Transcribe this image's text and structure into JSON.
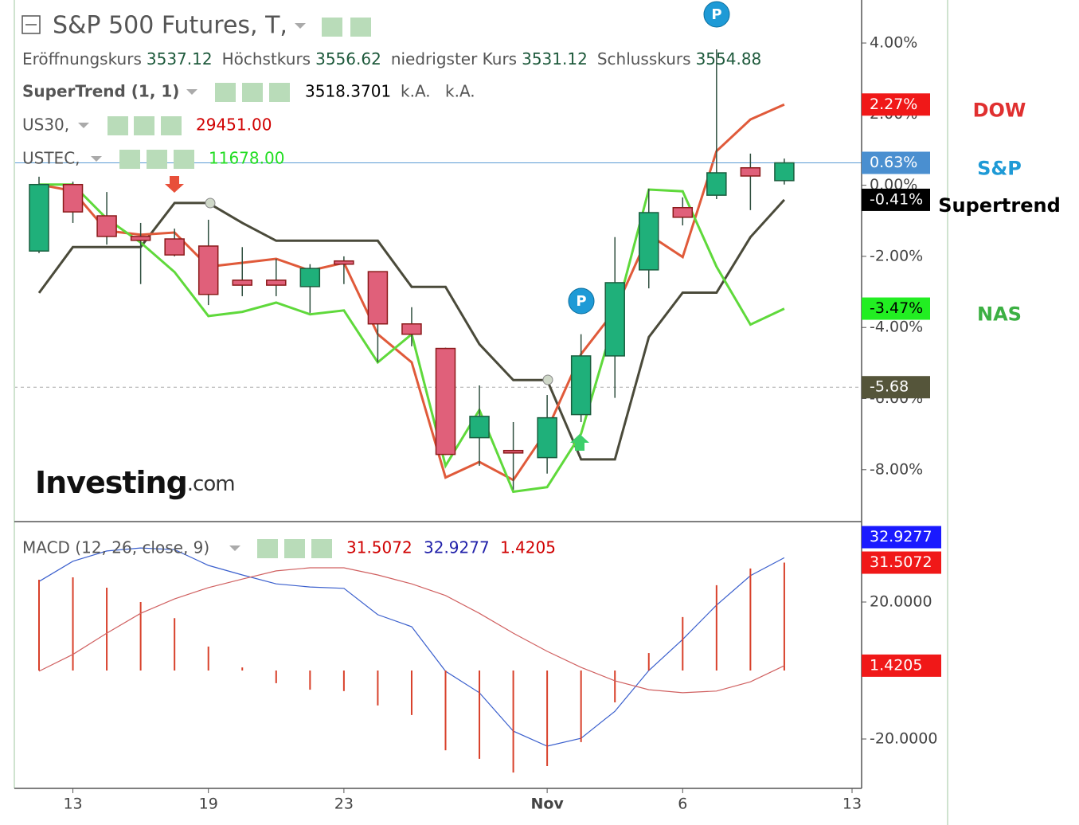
{
  "chart_data": [
    {
      "type": "candlestick",
      "title": "S&P 500 Futures, T,",
      "info": [
        {
          "label": "Eröffnungskurs",
          "value": "3537.12"
        },
        {
          "label": "Höchstkurs",
          "value": "3556.62"
        },
        {
          "label": "niedrigster Kurs",
          "value": "3531.12"
        },
        {
          "label": "Schlusskurs",
          "value": "3554.88"
        }
      ],
      "indicators": [
        {
          "label": "SuperTrend (1, 1)",
          "values": [
            "3518.3701",
            "k.A.",
            "k.A."
          ]
        },
        {
          "label": "US30,",
          "values": [
            "29451.00"
          ]
        },
        {
          "label": "USTEC,",
          "values": [
            "11678.00"
          ]
        }
      ],
      "watermark": [
        "Investing",
        ".com"
      ],
      "markers": [
        "P",
        "P"
      ],
      "categories": [
        null,
        "13",
        null,
        null,
        null,
        "19",
        null,
        null,
        null,
        "23",
        null,
        null,
        null,
        null,
        null,
        "Nov",
        null,
        null,
        null,
        "6",
        null,
        null,
        null,
        null,
        "13"
      ],
      "ylim": [
        -9.46,
        5.21
      ],
      "yticks": [
        {
          "value": 4,
          "label": "4.00%"
        },
        {
          "value": 2,
          "label": "2.00%"
        },
        {
          "value": 0,
          "label": "0.00%"
        },
        {
          "value": -2,
          "label": "-2.00%"
        },
        {
          "value": -4,
          "label": "-4.00%"
        },
        {
          "value": -6,
          "label": "-6.00%"
        },
        {
          "value": -8,
          "label": "-8.00%"
        }
      ],
      "reference_line": {
        "value": -5.68,
        "label": "-5.68",
        "color": "#55553a"
      },
      "series": [
        {
          "name": "S&P",
          "type": "candlestick",
          "color": "#5b9bd5",
          "label_color": "#1e9ad6",
          "badge_color": "#4a8fd0",
          "up_color": "#1fb07a",
          "down_color": "#e0607a",
          "open": [
            -1.85,
            0.02,
            -0.86,
            -1.44,
            -1.51,
            -1.71,
            -2.67,
            -2.67,
            -2.85,
            -2.13,
            -2.43,
            -3.9,
            -4.59,
            -7.1,
            -7.46,
            -7.66,
            -6.45,
            -4.8,
            -2.38,
            -0.63,
            -0.28,
            0.49,
            0.13,
            null,
            null
          ],
          "high": [
            0.24,
            0.1,
            -0.19,
            -1.06,
            -1.22,
            -0.97,
            -1.74,
            -2.07,
            -2.22,
            -2.0,
            -2.43,
            -3.43,
            -4.57,
            -5.63,
            -6.66,
            -5.9,
            -4.19,
            -1.46,
            -0.1,
            -0.34,
            3.82,
            0.89,
            0.75,
            null,
            null
          ],
          "low": [
            -1.91,
            -1.06,
            -1.67,
            -2.78,
            -2.0,
            -3.37,
            -3.12,
            -3.12,
            -3.59,
            -2.78,
            -4.98,
            -4.53,
            -7.59,
            -7.89,
            -8.56,
            -8.11,
            -6.66,
            -5.98,
            -2.9,
            -1.13,
            -0.39,
            -0.7,
            0.02,
            null,
            null
          ],
          "close": [
            0.02,
            -0.75,
            -1.44,
            -1.55,
            -1.96,
            -3.07,
            -2.81,
            -2.81,
            -2.34,
            -2.22,
            -3.9,
            -4.19,
            -7.57,
            -6.5,
            -7.53,
            -6.54,
            -4.8,
            -2.74,
            -0.77,
            -0.9,
            0.35,
            0.26,
            0.63,
            null,
            null
          ],
          "value_labels": [
            null,
            null,
            null,
            null,
            null,
            null,
            null,
            null,
            null,
            null,
            null,
            null,
            null,
            null,
            null,
            null,
            null,
            null,
            null,
            null,
            null,
            null,
            "0.63%",
            null,
            null
          ]
        },
        {
          "name": "DOW",
          "type": "line",
          "color": "#e05a3a",
          "label_color": "#e03030",
          "badge_color": "#f01818",
          "values": [
            0.02,
            -0.16,
            -1.28,
            -1.39,
            -1.33,
            -2.29,
            -2.18,
            -2.07,
            -2.4,
            -2.18,
            -4.19,
            -4.98,
            -8.22,
            -7.78,
            -8.29,
            -6.88,
            -4.75,
            -3.52,
            -1.39,
            -2.02,
            0.96,
            1.85,
            2.27,
            null,
            null
          ],
          "value_labels": [
            null,
            null,
            null,
            null,
            null,
            null,
            null,
            null,
            null,
            null,
            null,
            null,
            null,
            null,
            null,
            null,
            null,
            null,
            null,
            null,
            null,
            null,
            "2.27%",
            null,
            null
          ]
        },
        {
          "name": "Supertrend",
          "type": "line",
          "color": "#4a4a3a",
          "label_color": "#000000",
          "badge_color": "#000000",
          "values": [
            -3.03,
            -1.74,
            -1.74,
            -1.74,
            -0.5,
            -0.5,
            -1.06,
            -1.56,
            -1.56,
            -1.56,
            -1.56,
            -2.86,
            -2.86,
            -4.47,
            -5.48,
            -5.48,
            -7.71,
            -7.71,
            -4.27,
            -3.02,
            -3.02,
            -1.46,
            -0.41,
            null,
            null
          ],
          "value_labels": [
            null,
            null,
            null,
            null,
            null,
            null,
            null,
            null,
            null,
            null,
            null,
            null,
            null,
            null,
            null,
            null,
            null,
            null,
            null,
            null,
            null,
            null,
            "-0.41%",
            null,
            null
          ]
        },
        {
          "name": "NAS",
          "type": "line",
          "color": "#5fd93b",
          "label_color": "#3cb043",
          "badge_color": "#22ee22",
          "values": [
            0.02,
            0.02,
            -0.94,
            -1.61,
            -2.44,
            -3.68,
            -3.56,
            -3.3,
            -3.63,
            -3.52,
            -4.98,
            -4.19,
            -7.89,
            -6.32,
            -8.62,
            -8.49,
            -6.99,
            -3.74,
            -0.12,
            -0.17,
            -2.29,
            -3.92,
            -3.47,
            null,
            null
          ],
          "value_labels": [
            null,
            null,
            null,
            null,
            null,
            null,
            null,
            null,
            null,
            null,
            null,
            null,
            null,
            null,
            null,
            null,
            null,
            null,
            null,
            null,
            null,
            null,
            "-3.47%",
            null,
            null
          ]
        }
      ]
    },
    {
      "type": "macd",
      "title": "MACD (12, 26, close, 9)",
      "ylim": [
        -34.42,
        43.49
      ],
      "yticks": [
        {
          "value": 20,
          "label": "20.0000"
        },
        {
          "value": -20,
          "label": "-20.0000"
        }
      ],
      "series": [
        {
          "type": "line",
          "color": "#3a5fcd",
          "badge_color": "#1a1aff",
          "values": [
            26.0,
            31.9,
            34.9,
            35.8,
            35.3,
            30.7,
            27.9,
            25.3,
            24.4,
            24.0,
            16.3,
            12.8,
            -0.2,
            -6.5,
            -17.7,
            -22.1,
            -19.8,
            -11.9,
            0.0,
            9.1,
            19.1,
            27.7,
            32.9277,
            null,
            null
          ],
          "value_labels": [
            null,
            null,
            null,
            null,
            null,
            null,
            null,
            null,
            null,
            null,
            null,
            null,
            null,
            null,
            null,
            null,
            null,
            null,
            null,
            null,
            null,
            null,
            "32.9277",
            null,
            null
          ]
        },
        {
          "type": "bar",
          "color": "#d8402a",
          "badge_color": "#f01818",
          "values": [
            26.5,
            27.2,
            24.2,
            20.0,
            15.3,
            7.0,
            0.9,
            -3.7,
            -5.6,
            -6.0,
            -10.2,
            -13.0,
            -23.3,
            -25.8,
            -29.8,
            -27.9,
            -20.9,
            -9.3,
            5.1,
            15.6,
            24.9,
            29.8,
            31.5072,
            null,
            null
          ],
          "value_labels": [
            null,
            null,
            null,
            null,
            null,
            null,
            null,
            null,
            null,
            null,
            null,
            null,
            null,
            null,
            null,
            null,
            null,
            null,
            null,
            null,
            null,
            null,
            "31.5072",
            null,
            null
          ]
        },
        {
          "type": "line",
          "color": "#d06060",
          "badge_color": "#f01818",
          "values": [
            -0.2,
            4.7,
            10.9,
            16.7,
            20.9,
            24.2,
            26.7,
            29.1,
            30.0,
            30.0,
            27.9,
            25.3,
            21.9,
            16.7,
            10.9,
            5.6,
            0.9,
            -3.0,
            -5.6,
            -6.5,
            -6.0,
            -3.3,
            1.4205,
            null,
            null
          ],
          "value_labels": [
            null,
            null,
            null,
            null,
            null,
            null,
            null,
            null,
            null,
            null,
            null,
            null,
            null,
            null,
            null,
            null,
            null,
            null,
            null,
            null,
            null,
            null,
            "1.4205",
            null,
            null
          ]
        }
      ]
    }
  ]
}
